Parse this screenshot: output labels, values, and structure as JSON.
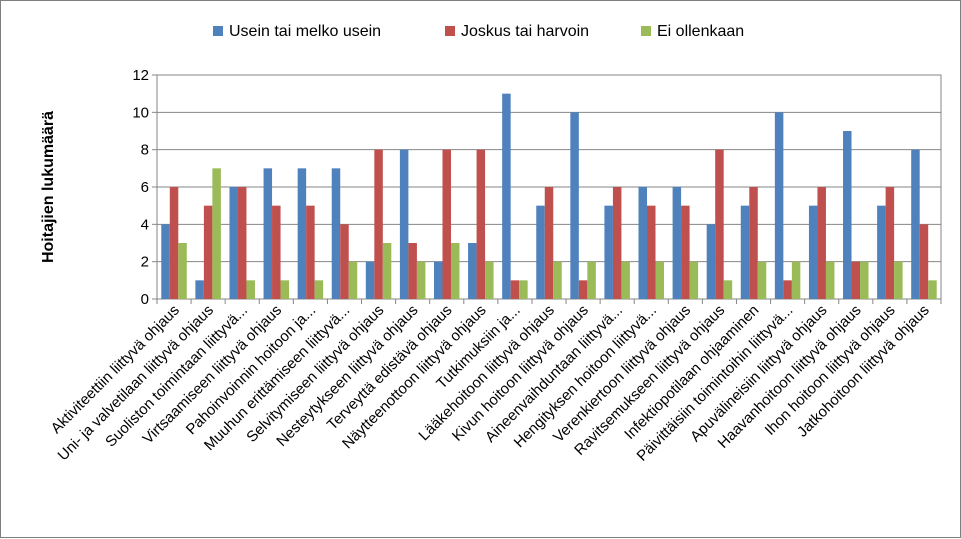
{
  "chart_data": {
    "type": "bar",
    "ylabel": "Hoitajien lukumäärä",
    "xlabel": "",
    "ylim": [
      0,
      12
    ],
    "yticks": [
      0,
      2,
      4,
      6,
      8,
      10,
      12
    ],
    "grid": true,
    "legend_position": "top",
    "categories": [
      "Aktiviteettiin liittyvä ohjaus",
      "Uni- ja valvetilaan liittyvä ohjaus",
      "Suoliston toimintaan liittyvä...",
      "Virtsaamiseen liittyvä ohjaus",
      "Pahoinvoinnin hoitoon ja...",
      "Muuhun erittämiseen liittyvä...",
      "Selvitymiseen liittyvä ohjaus",
      "Nesteytykseen liittyvä ohjaus",
      "Terveyttä edistävä ohjaus",
      "Näytteenottoon liittyvä ohjaus",
      "Tutkimuksiin ja...",
      "Lääkehoitoon liittyvä ohjaus",
      "Kivun hoitoon liittyvä ohjaus",
      "Aineenvaihduntaan liittyvä...",
      "Hengityksen hoitoon liittyvä...",
      "Verenkiertoon liittyvä ohjaus",
      "Ravitsemukseen liittyvä ohjaus",
      "Infektiopotilaan ohjaaminen",
      "Päivittäisiin toimintoihin liittyvä...",
      "Apuvälineisiin liittyvä ohjaus",
      "Haavanhoitoon liittyvä ohjaus",
      "Ihon hoitoon liittyvä ohjaus",
      "Jatkohoitoon liittyvä ohjaus"
    ],
    "series": [
      {
        "name": "Usein tai melko usein",
        "color": "#4f81bd",
        "values": [
          4,
          1,
          6,
          7,
          7,
          7,
          2,
          8,
          2,
          3,
          11,
          5,
          10,
          5,
          6,
          6,
          4,
          5,
          10,
          5,
          9,
          5,
          8
        ]
      },
      {
        "name": "Joskus tai harvoin",
        "color": "#c0504d",
        "values": [
          6,
          5,
          6,
          5,
          5,
          4,
          8,
          3,
          8,
          8,
          1,
          6,
          1,
          6,
          5,
          5,
          8,
          6,
          1,
          6,
          2,
          6,
          4
        ]
      },
      {
        "name": "Ei ollenkaan",
        "color": "#9bbb59",
        "values": [
          3,
          7,
          1,
          1,
          1,
          2,
          3,
          2,
          3,
          2,
          1,
          2,
          2,
          2,
          2,
          2,
          1,
          2,
          2,
          2,
          2,
          2,
          1
        ]
      }
    ]
  }
}
